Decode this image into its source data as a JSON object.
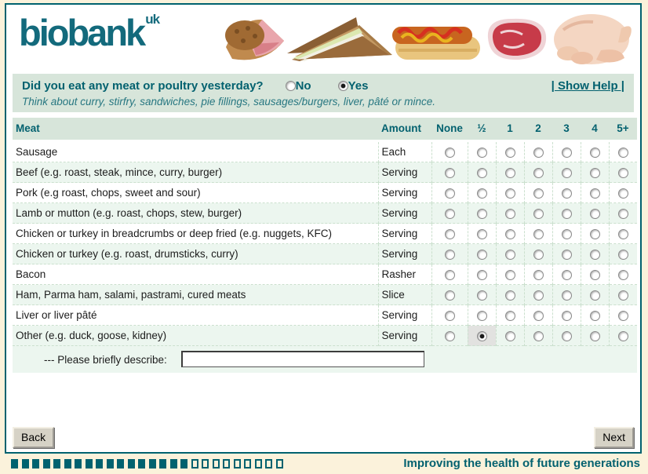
{
  "brand": {
    "logo_text": "biobank",
    "logo_sup": "uk",
    "tagline": "Improving the health of future generations"
  },
  "header_images": [
    "pork-pie-photo",
    "sandwich-photo",
    "hot-dog-photo",
    "steak-photo",
    "chicken-photo"
  ],
  "question": {
    "text": "Did you eat any meat or poultry yesterday?",
    "hint": "Think about curry, stirfry, sandwiches, pie fillings, sausages/burgers, liver, pâté or mince.",
    "options": [
      "No",
      "Yes"
    ],
    "selected": "Yes",
    "help_label": "| Show Help |"
  },
  "table": {
    "columns": [
      "Meat",
      "Amount",
      "None",
      "½",
      "1",
      "2",
      "3",
      "4",
      "5+"
    ],
    "amount_options": [
      "None",
      "½",
      "1",
      "2",
      "3",
      "4",
      "5+"
    ],
    "rows": [
      {
        "label": "Sausage",
        "unit": "Each",
        "selected": null
      },
      {
        "label": "Beef (e.g. roast, steak, mince, curry, burger)",
        "unit": "Serving",
        "selected": null
      },
      {
        "label": "Pork (e.g roast, chops, sweet and sour)",
        "unit": "Serving",
        "selected": null
      },
      {
        "label": "Lamb or mutton (e.g. roast, chops, stew, burger)",
        "unit": "Serving",
        "selected": null
      },
      {
        "label": "Chicken or turkey in breadcrumbs or deep fried (e.g. nuggets, KFC)",
        "unit": "Serving",
        "selected": null
      },
      {
        "label": "Chicken or turkey (e.g. roast, drumsticks, curry)",
        "unit": "Serving",
        "selected": null
      },
      {
        "label": "Bacon",
        "unit": "Rasher",
        "selected": null
      },
      {
        "label": "Ham, Parma ham, salami, pastrami, cured meats",
        "unit": "Slice",
        "selected": null
      },
      {
        "label": "Liver or liver pâté",
        "unit": "Serving",
        "selected": null
      },
      {
        "label": "Other (e.g. duck, goose, kidney)",
        "unit": "Serving",
        "selected": "½"
      }
    ],
    "describe": {
      "label": "--- Please briefly describe:",
      "value": ""
    }
  },
  "buttons": {
    "back": "Back",
    "next": "Next"
  },
  "progress": {
    "filled": 17,
    "total": 26
  },
  "colors": {
    "teal": "#00626F",
    "cream": "#FBF2DB",
    "bar_green": "#D7E5DA",
    "row_tint": "#ECF6EF",
    "selected_gray": "#E2E2E0"
  }
}
